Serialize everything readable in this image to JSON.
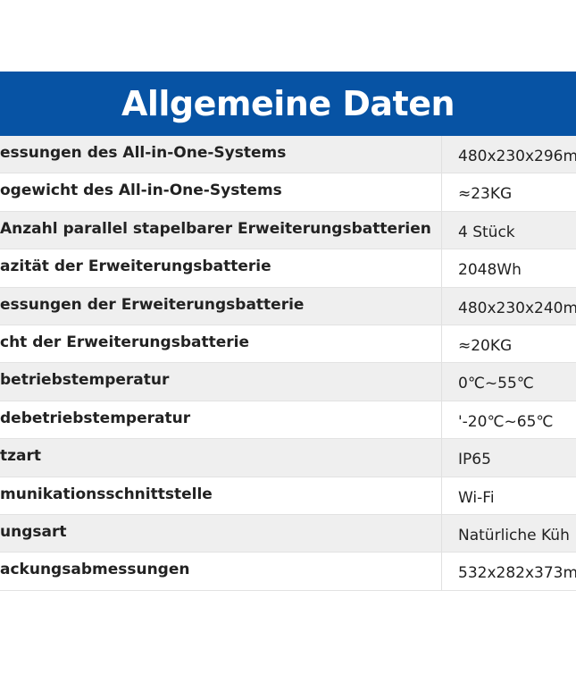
{
  "title": "Allgemeine Daten",
  "colors": {
    "header_bg": "#0753a4",
    "row_alt": "#efefef"
  },
  "rows": [
    {
      "label": "essungen des All-in-One-Systems",
      "value": "480x230x296m"
    },
    {
      "label": "ogewicht des All-in-One-Systems",
      "value": "≈23KG"
    },
    {
      "label": " Anzahl parallel stapelbarer Erweiterungsbatterien",
      "value": "4 Stück"
    },
    {
      "label": "azität der Erweiterungsbatterie",
      "value": "2048Wh"
    },
    {
      "label": "essungen der Erweiterungsbatterie",
      "value": "480x230x240m"
    },
    {
      "label": "cht der Erweiterungsbatterie",
      "value": "≈20KG"
    },
    {
      "label": "betriebstemperatur",
      "value": "0℃~55℃"
    },
    {
      "label": "debetriebstemperatur",
      "value": "'-20℃~65℃"
    },
    {
      "label": "tzart",
      "value": "IP65"
    },
    {
      "label": "munikationsschnittstelle",
      "value": "Wi-Fi"
    },
    {
      "label": "ungsart",
      "value": "Natürliche Küh"
    },
    {
      "label": "ackungsabmessungen",
      "value": "532x282x373m"
    }
  ]
}
